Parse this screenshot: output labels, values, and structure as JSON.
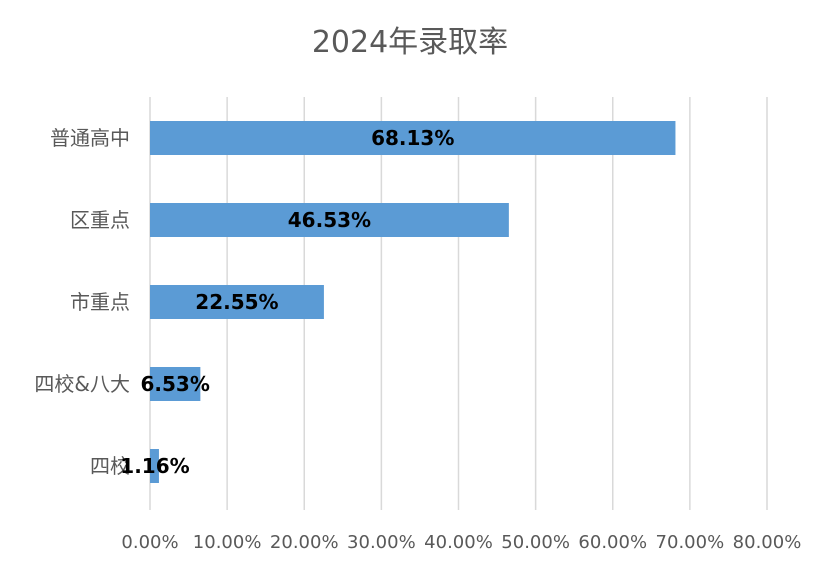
{
  "chart_data": {
    "type": "bar",
    "orientation": "horizontal",
    "title": "2024年录取率",
    "categories": [
      "普通高中",
      "区重点",
      "市重点",
      "四校&八大",
      "四校"
    ],
    "values": [
      68.13,
      46.53,
      22.55,
      6.53,
      1.16
    ],
    "data_labels": [
      "68.13%",
      "46.53%",
      "22.55%",
      "6.53%",
      "1.16%"
    ],
    "xlim": [
      0,
      80
    ],
    "x_ticks": [
      0,
      10,
      20,
      30,
      40,
      50,
      60,
      70,
      80
    ],
    "x_tick_labels": [
      "0.00%",
      "10.00%",
      "20.00%",
      "30.00%",
      "40.00%",
      "50.00%",
      "60.00%",
      "70.00%",
      "80.00%"
    ],
    "xlabel": "",
    "ylabel": "",
    "grid": "vertical",
    "legend": "none",
    "colors": {
      "bar": "#5B9BD5",
      "grid": "#D9D9D9",
      "text": "#595959",
      "data_label": "#000000"
    }
  }
}
